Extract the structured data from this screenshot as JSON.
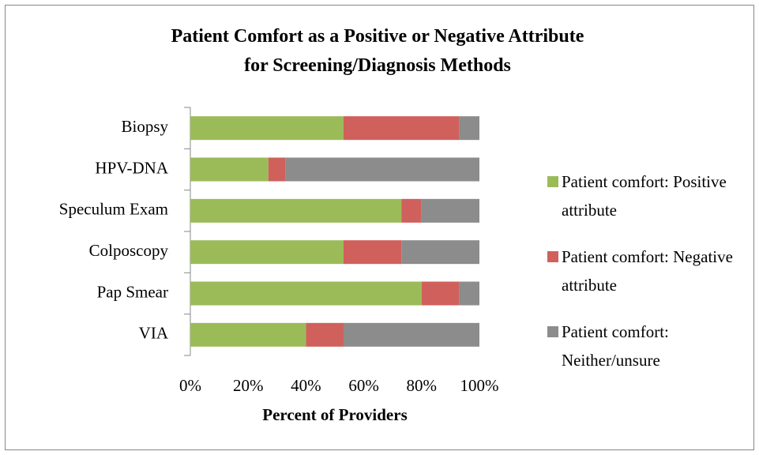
{
  "chart_data": {
    "type": "bar",
    "orientation": "horizontal",
    "stacked": true,
    "title": "Patient Comfort as a Positive or Negative Attribute for Screening/Diagnosis Methods",
    "xlabel": "Percent of Providers",
    "categories": [
      "Biopsy",
      "HPV-DNA",
      "Speculum Exam",
      "Colposcopy",
      "Pap Smear",
      "VIA"
    ],
    "series": [
      {
        "name": "Patient comfort: Positive attribute",
        "color": "#9bbb59",
        "values": [
          53,
          27,
          73,
          53,
          80,
          40
        ]
      },
      {
        "name": "Patient comfort: Negative attribute",
        "color": "#d0605c",
        "values": [
          40,
          6,
          7,
          20,
          13,
          13
        ]
      },
      {
        "name": "Patient comfort: Neither/unsure",
        "color": "#8c8c8c",
        "values": [
          7,
          67,
          20,
          27,
          7,
          47
        ]
      }
    ],
    "xlim": [
      0,
      100
    ],
    "xticks": [
      {
        "value": 0,
        "label": "0%"
      },
      {
        "value": 20,
        "label": "20%"
      },
      {
        "value": 40,
        "label": "40%"
      },
      {
        "value": 60,
        "label": "60%"
      },
      {
        "value": 80,
        "label": "80%"
      },
      {
        "value": 100,
        "label": "100%"
      }
    ],
    "legend": "right",
    "grid": false
  }
}
